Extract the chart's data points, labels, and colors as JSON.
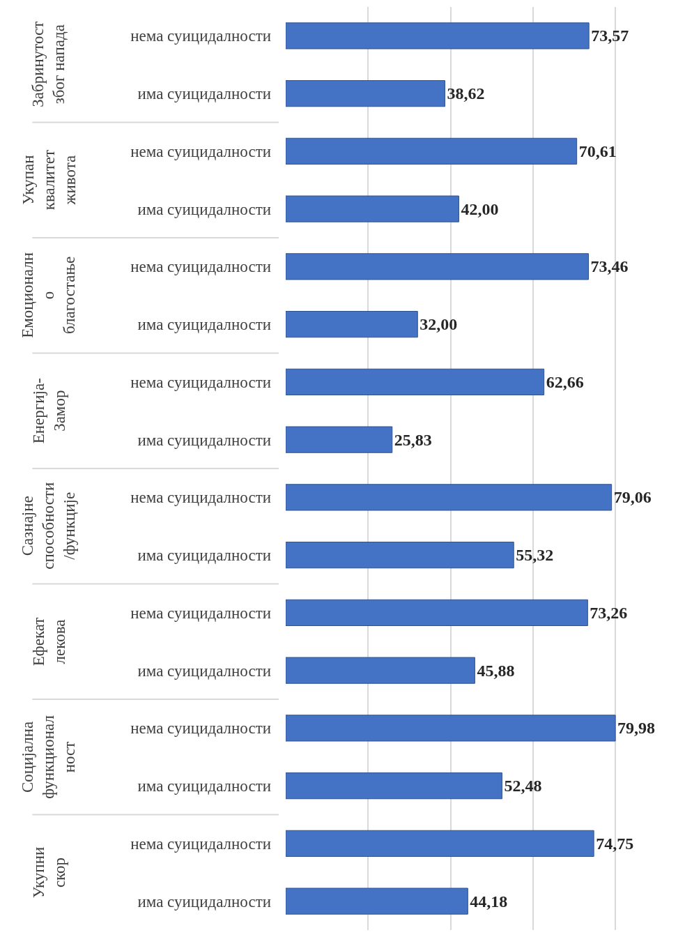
{
  "chart_data": {
    "type": "bar",
    "orientation": "horizontal",
    "categories": [
      "нема суицидалности",
      "има суицидалности",
      "нема суицидалности",
      "има суицидалности",
      "нема суицидалности",
      "има суицидалности",
      "нема суицидалности",
      "има суицидалности",
      "нема суицидалности",
      "има суицидалности",
      "нема суицидалности",
      "има суицидалности",
      "нема суицидалности",
      "има суицидалности",
      "нема суицидалности",
      "има суицидалности"
    ],
    "values": [
      73.57,
      38.62,
      70.61,
      42.0,
      73.46,
      32.0,
      62.66,
      25.83,
      79.06,
      55.32,
      73.26,
      45.88,
      79.98,
      52.48,
      74.75,
      44.18
    ],
    "value_labels": [
      "73,57",
      "38,62",
      "70,61",
      "42,00",
      "73,46",
      "32,00",
      "62,66",
      "25,83",
      "79,06",
      "55,32",
      "73,26",
      "45,88",
      "79,98",
      "52,48",
      "74,75",
      "44,18"
    ],
    "color": "#4472c4",
    "grid": "x",
    "annotations": [
      "Забринутост\nзбог напада",
      "Укупан\nквалитет\nживота",
      "Емоционалн\nо\nблагостање",
      "Енергија-\nЗамор",
      "Сазнајне\nспособности\n/функције",
      "Ефекат\nлекова",
      "Социјална\nфункционал\nност",
      "Укупни\nскор"
    ]
  }
}
